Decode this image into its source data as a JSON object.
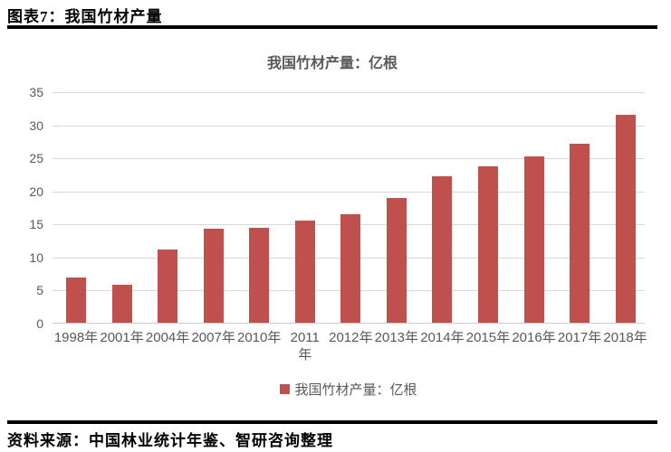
{
  "header": {
    "title": "图表7：我国竹材产量"
  },
  "footer": {
    "source": "资料来源：中国林业统计年鉴、智研咨询整理"
  },
  "chart_data": {
    "type": "bar",
    "title": "我国竹材产量：亿根",
    "categories": [
      "1998年",
      "2001年",
      "2004年",
      "2007年",
      "2010年",
      "2011年",
      "2012年",
      "2013年",
      "2014年",
      "2015年",
      "2016年",
      "2017年",
      "2018年"
    ],
    "x_labels_display": [
      "1998年",
      "2001年",
      "2004年",
      "2007年",
      "2010年",
      "2011\n年",
      "2012年",
      "2013年",
      "2014年",
      "2015年",
      "2016年",
      "2017年",
      "2018年"
    ],
    "values": [
      6.8,
      5.8,
      11.1,
      14.2,
      14.4,
      15.5,
      16.4,
      18.9,
      22.2,
      23.6,
      25.1,
      27.1,
      31.5
    ],
    "ylabel": "",
    "xlabel": "",
    "ylim": [
      0,
      35
    ],
    "yticks": [
      0,
      5,
      10,
      15,
      20,
      25,
      30,
      35
    ],
    "grid": "horizontal",
    "legend_position": "bottom",
    "legend": [
      {
        "label": "我国竹材产量：亿根",
        "color": "#C0504D"
      }
    ],
    "bar_color": "#C0504D",
    "gridline_color": "#D9D9D9",
    "text_color": "#595959"
  }
}
